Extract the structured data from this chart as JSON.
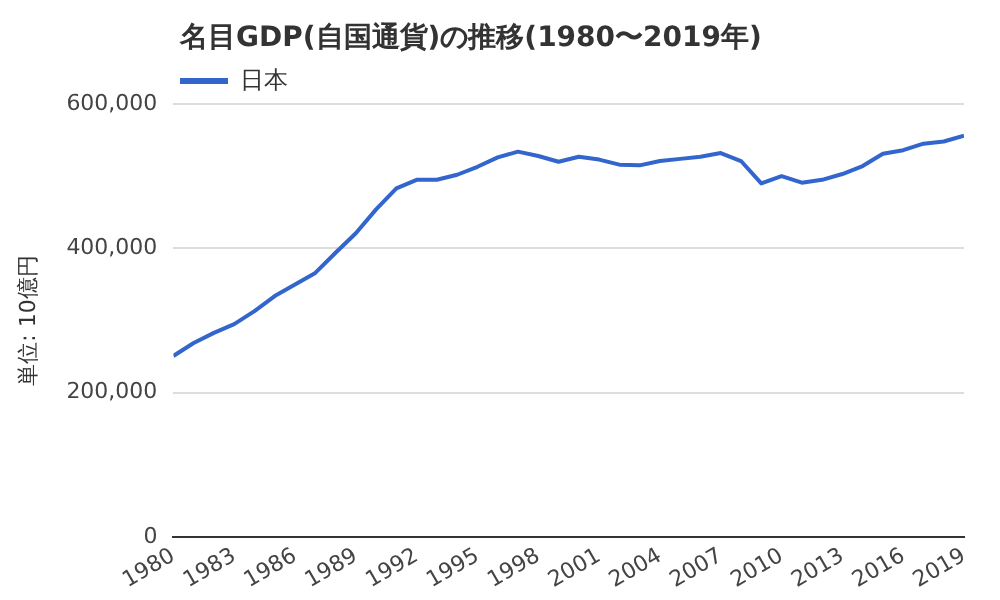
{
  "chart_data": {
    "type": "line",
    "title": "名目GDP(自国通貨)の推移(1980〜2019年)",
    "ylabel": "単位: 10億円",
    "x": [
      1980,
      1981,
      1982,
      1983,
      1984,
      1985,
      1986,
      1987,
      1988,
      1989,
      1990,
      1991,
      1992,
      1993,
      1994,
      1995,
      1996,
      1997,
      1998,
      1999,
      2000,
      2001,
      2002,
      2003,
      2004,
      2005,
      2006,
      2007,
      2008,
      2009,
      2010,
      2011,
      2012,
      2013,
      2014,
      2015,
      2016,
      2017,
      2018,
      2019
    ],
    "series": [
      {
        "name": "日本",
        "color": "#3366cc",
        "values": [
          251000,
          269000,
          283000,
          295000,
          313000,
          334000,
          350000,
          366000,
          394000,
          421000,
          454000,
          483000,
          495000,
          495000,
          502000,
          513000,
          526000,
          534000,
          528000,
          520000,
          527000,
          523000,
          516000,
          515000,
          521000,
          524000,
          527000,
          532000,
          521000,
          490000,
          500000,
          491000,
          495000,
          503000,
          514000,
          531000,
          536000,
          545000,
          548000,
          556000
        ]
      }
    ],
    "xlim": [
      1980,
      2019
    ],
    "xticks": [
      1980,
      1983,
      1986,
      1989,
      1992,
      1995,
      1998,
      2001,
      2004,
      2007,
      2010,
      2013,
      2016,
      2019
    ],
    "ylim": [
      0,
      600000
    ],
    "yticks": [
      0,
      {
        "value": 200000,
        "label": "200,000"
      },
      {
        "value": 400000,
        "label": "400,000"
      },
      {
        "value": 600000,
        "label": "600,000"
      }
    ],
    "grid": "y",
    "legend": "top left",
    "marker": "none",
    "line_style": "solid"
  }
}
